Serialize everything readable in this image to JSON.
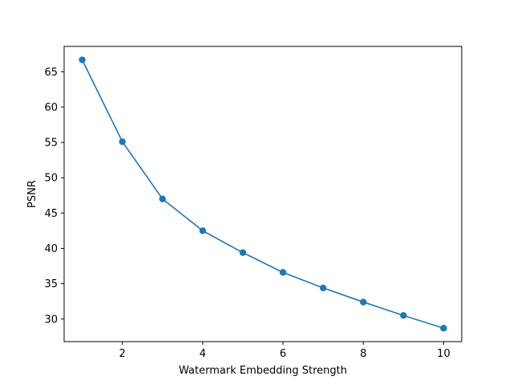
{
  "chart_data": {
    "type": "line",
    "title": "",
    "xlabel": "Watermark Embedding Strength",
    "ylabel": "PSNR",
    "xlim": [
      0.55,
      10.45
    ],
    "ylim": [
      26.8,
      68.6
    ],
    "xticks": [
      2,
      4,
      6,
      8,
      10
    ],
    "yticks": [
      30,
      35,
      40,
      45,
      50,
      55,
      60,
      65
    ],
    "grid": false,
    "legend": "none",
    "series": [
      {
        "color": "#1f77b4",
        "marker": "circle",
        "x": [
          1,
          2,
          3,
          4,
          5,
          6,
          7,
          8,
          9,
          10
        ],
        "y": [
          66.7,
          55.1,
          47.0,
          42.5,
          39.4,
          36.6,
          34.4,
          32.4,
          30.5,
          28.7
        ]
      }
    ]
  }
}
